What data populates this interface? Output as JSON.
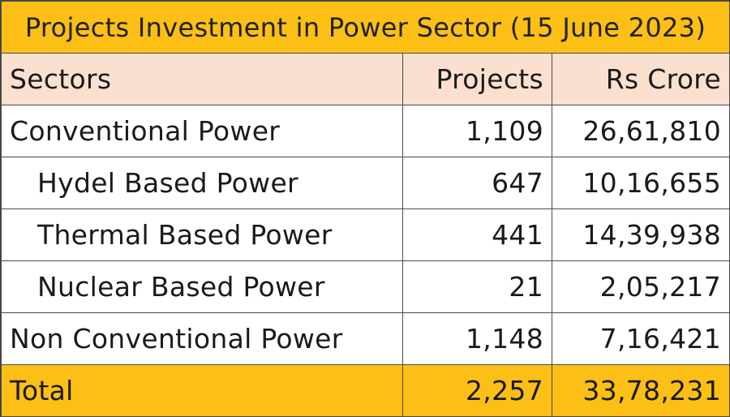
{
  "title": "Projects Investment in Power Sector (15 June 2023)",
  "headers": {
    "sectors": "Sectors",
    "projects": "Projects",
    "value": "Rs Crore"
  },
  "rows": [
    {
      "label": "Conventional Power",
      "projects": "1,109",
      "value": "26,61,810"
    },
    {
      "label": "Hydel Based Power",
      "projects": "647",
      "value": "10,16,655"
    },
    {
      "label": "Thermal Based Power",
      "projects": "441",
      "value": "14,39,938"
    },
    {
      "label": "Nuclear Based Power",
      "projects": "21",
      "value": "2,05,217"
    },
    {
      "label": "Non Conventional Power",
      "projects": "1,148",
      "value": "7,16,421"
    }
  ],
  "total": {
    "label": "Total",
    "projects": "2,257",
    "value": "33,78,231"
  },
  "colors": {
    "title_bg": "#fbbf15",
    "header_bg": "#fbe0cf",
    "total_bg": "#fbbf15"
  }
}
